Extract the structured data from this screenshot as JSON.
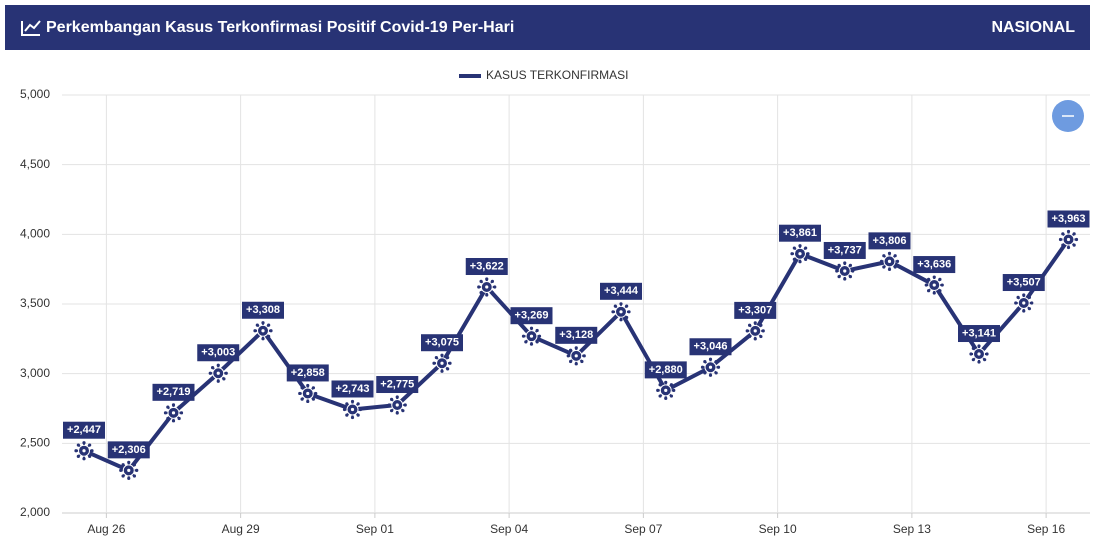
{
  "header": {
    "title": "Perkembangan Kasus Terkonfirmasi Positif Covid-19 Per-Hari",
    "region": "NASIONAL"
  },
  "chart_data": {
    "type": "line",
    "categories": [
      "Aug 26",
      null,
      null,
      "Aug 29",
      null,
      null,
      "Sep 01",
      null,
      null,
      "Sep 04",
      null,
      null,
      "Sep 07",
      null,
      null,
      "Sep 10",
      null,
      null,
      "Sep 13",
      null,
      null,
      "Sep 16",
      null
    ],
    "series": [
      {
        "name": "KASUS TERKONFIRMASI",
        "color": "#283375",
        "values": [
          2447,
          2306,
          2719,
          3003,
          3308,
          2858,
          2743,
          2775,
          3075,
          3622,
          3269,
          3128,
          3444,
          2880,
          3046,
          3307,
          3861,
          3737,
          3806,
          3636,
          3141,
          3507,
          3963
        ],
        "value_labels": [
          "+2,447",
          "+2,306",
          "+2,719",
          "+3,003",
          "+3,308",
          "+2,858",
          "+2,743",
          "+2,775",
          "+3,075",
          "+3,622",
          "+3,269",
          "+3,128",
          "+3,444",
          "+2,880",
          "+3,046",
          "+3,307",
          "+3,861",
          "+3,737",
          "+3,806",
          "+3,636",
          "+3,141",
          "+3,507",
          "+3,963"
        ]
      }
    ],
    "ylim": [
      2000,
      5000
    ],
    "yticks": [
      {
        "value": 2000,
        "label": "2,000"
      },
      {
        "value": 2500,
        "label": "2,500"
      },
      {
        "value": 3000,
        "label": "3,000"
      },
      {
        "value": 3500,
        "label": "3,500"
      },
      {
        "value": 4000,
        "label": "4,000"
      },
      {
        "value": 4500,
        "label": "4,500"
      },
      {
        "value": 5000,
        "label": "5,000"
      }
    ],
    "grid": true,
    "legend": "top"
  }
}
